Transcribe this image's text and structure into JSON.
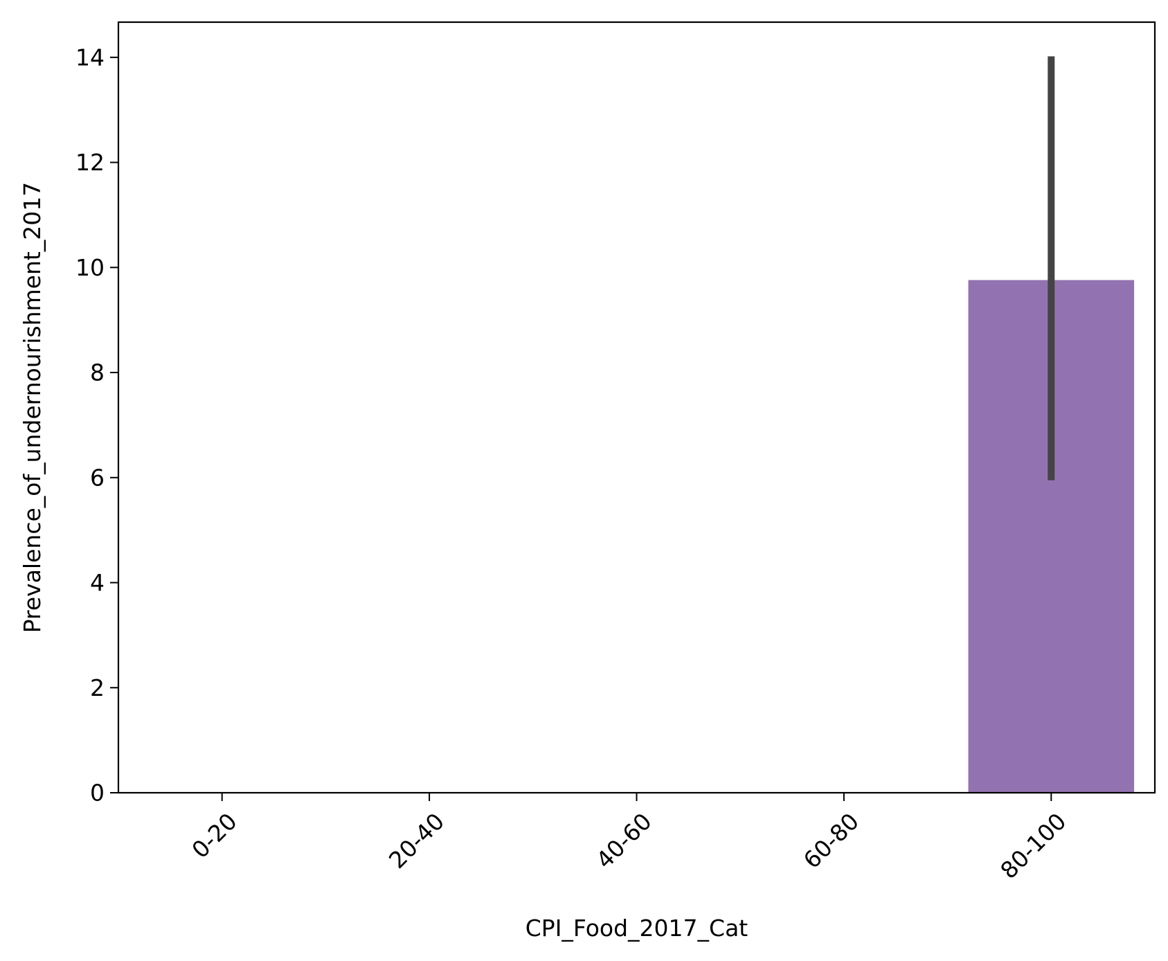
{
  "chart_data": {
    "type": "bar",
    "title": "",
    "xlabel": "CPI_Food_2017_Cat",
    "ylabel": "Prevalence_of_undernourishment_2017",
    "categories": [
      "0-20",
      "20-40",
      "40-60",
      "60-80",
      "80-100"
    ],
    "series": [
      {
        "values": [
          null,
          null,
          null,
          null,
          9.76
        ],
        "error_low": [
          null,
          null,
          null,
          null,
          5.95
        ],
        "error_high": [
          null,
          null,
          null,
          null,
          14.02
        ]
      }
    ],
    "bar_colors": [
      "#1f77b4",
      "#ff7f0e",
      "#2ca02c",
      "#d62728",
      "#9372b1"
    ],
    "error_bar_color": "#444444",
    "ylim": [
      0,
      14.67
    ],
    "yticks": [
      0,
      2,
      4,
      6,
      8,
      10,
      12,
      14
    ],
    "ytick_labels": [
      "0",
      "2",
      "4",
      "6",
      "8",
      "10",
      "12",
      "14"
    ],
    "grid": false,
    "legend": "none"
  }
}
